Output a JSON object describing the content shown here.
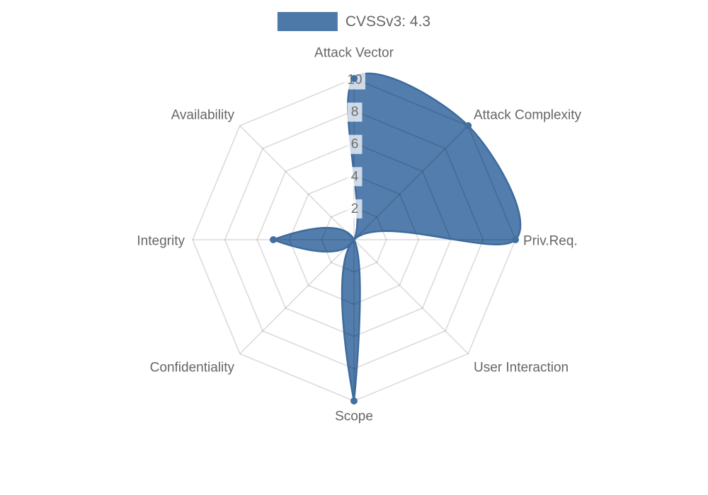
{
  "legend": {
    "label": "CVSSv3: 4.3"
  },
  "chart_data": {
    "type": "radar",
    "title": "CVSSv3: 4.3",
    "axes": [
      "Attack Vector",
      "Attack Complexity",
      "Priv.Req.",
      "User Interaction",
      "Scope",
      "Confidentiality",
      "Integrity",
      "Availability"
    ],
    "series": [
      {
        "name": "CVSSv3: 4.3",
        "values": [
          10,
          10,
          10,
          0,
          10,
          0,
          5,
          0
        ]
      }
    ],
    "ticks": [
      2,
      4,
      6,
      8,
      10
    ],
    "rmax": 10,
    "grid": "polygonal-web",
    "legend_position": "top",
    "colors": {
      "series_fill": "#4d79a9",
      "series_border": "#3e6b9d",
      "point": "#426f9f",
      "grid_line": "rgba(0,0,0,0.14)",
      "axis_label": "#666666",
      "tick_label": "#6e6e6e",
      "tick_backdrop": "rgba(255,255,255,0.72)"
    }
  }
}
